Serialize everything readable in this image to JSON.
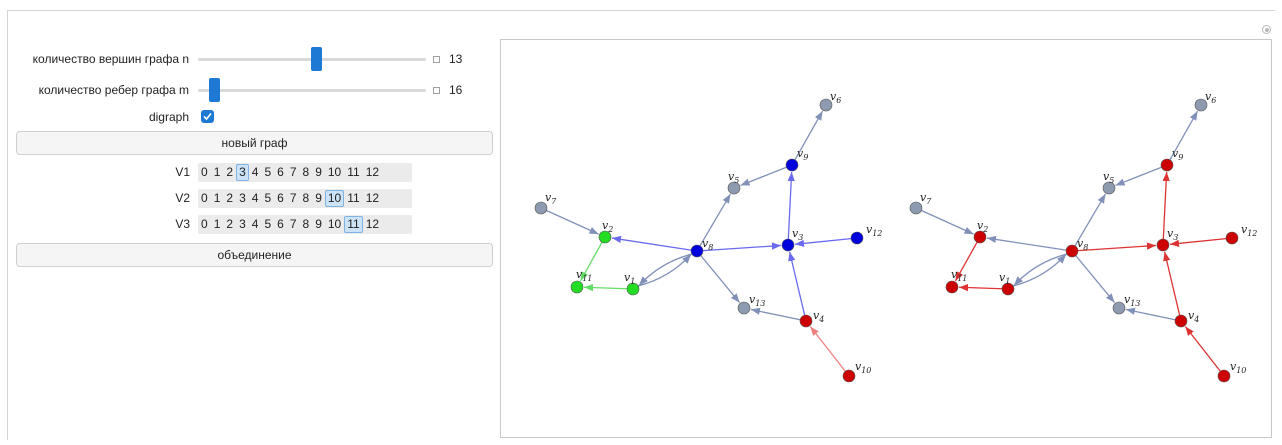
{
  "controls": {
    "n": {
      "label": "количество вершин графа n",
      "value": "13",
      "fraction": 0.52
    },
    "m": {
      "label": "количество ребер графа m",
      "value": "16",
      "fraction": 0.05
    },
    "digraph": {
      "label": "digraph",
      "checked": true
    }
  },
  "new_graph_button": "новый граф",
  "union_button": "объединение",
  "setters": [
    {
      "label": "V1",
      "options": [
        "0",
        "1",
        "2",
        "3",
        "4",
        "5",
        "6",
        "7",
        "8",
        "9",
        "10",
        "11",
        "12"
      ],
      "selected": "3"
    },
    {
      "label": "V2",
      "options": [
        "0",
        "1",
        "2",
        "3",
        "4",
        "5",
        "6",
        "7",
        "8",
        "9",
        "10",
        "11",
        "12"
      ],
      "selected": "10"
    },
    {
      "label": "V3",
      "options": [
        "0",
        "1",
        "2",
        "3",
        "4",
        "5",
        "6",
        "7",
        "8",
        "9",
        "10",
        "11",
        "12"
      ],
      "selected": "11"
    }
  ],
  "colors": {
    "gray": "#8e9ab0",
    "blue": "#0000dd",
    "green": "#22dd22",
    "red": "#cc0000",
    "edge": "#8090b8"
  },
  "vertex_label_prefix": "v",
  "graph_left": {
    "vertices": [
      {
        "id": 1,
        "color": "green"
      },
      {
        "id": 2,
        "color": "green"
      },
      {
        "id": 3,
        "color": "blue"
      },
      {
        "id": 4,
        "color": "red"
      },
      {
        "id": 5,
        "color": "gray"
      },
      {
        "id": 6,
        "color": "gray"
      },
      {
        "id": 7,
        "color": "gray"
      },
      {
        "id": 8,
        "color": "blue"
      },
      {
        "id": 9,
        "color": "blue"
      },
      {
        "id": 10,
        "color": "red"
      },
      {
        "id": 11,
        "color": "green"
      },
      {
        "id": 12,
        "color": "blue"
      },
      {
        "id": 13,
        "color": "gray"
      }
    ],
    "edges": [
      {
        "from": 7,
        "to": 2,
        "color": "gray"
      },
      {
        "from": 8,
        "to": 2,
        "color": "blue"
      },
      {
        "from": 2,
        "to": 11,
        "color": "green"
      },
      {
        "from": 1,
        "to": 11,
        "color": "green"
      },
      {
        "from": 1,
        "to": 8,
        "color": "gray"
      },
      {
        "from": 8,
        "to": 1,
        "color": "gray"
      },
      {
        "from": 8,
        "to": 5,
        "color": "gray"
      },
      {
        "from": 9,
        "to": 5,
        "color": "gray"
      },
      {
        "from": 9,
        "to": 6,
        "color": "gray"
      },
      {
        "from": 3,
        "to": 9,
        "color": "blue"
      },
      {
        "from": 8,
        "to": 3,
        "color": "blue"
      },
      {
        "from": 12,
        "to": 3,
        "color": "blue"
      },
      {
        "from": 4,
        "to": 3,
        "color": "blue"
      },
      {
        "from": 4,
        "to": 13,
        "color": "gray"
      },
      {
        "from": 8,
        "to": 13,
        "color": "gray"
      },
      {
        "from": 10,
        "to": 4,
        "color": "red"
      }
    ]
  },
  "graph_right": {
    "vertices": [
      {
        "id": 1,
        "color": "red"
      },
      {
        "id": 2,
        "color": "red"
      },
      {
        "id": 3,
        "color": "red"
      },
      {
        "id": 4,
        "color": "red"
      },
      {
        "id": 5,
        "color": "gray"
      },
      {
        "id": 6,
        "color": "gray"
      },
      {
        "id": 7,
        "color": "gray"
      },
      {
        "id": 8,
        "color": "red"
      },
      {
        "id": 9,
        "color": "red"
      },
      {
        "id": 10,
        "color": "red"
      },
      {
        "id": 11,
        "color": "red"
      },
      {
        "id": 12,
        "color": "red"
      },
      {
        "id": 13,
        "color": "gray"
      }
    ],
    "edges": [
      {
        "from": 7,
        "to": 2,
        "color": "gray"
      },
      {
        "from": 8,
        "to": 2,
        "color": "gray"
      },
      {
        "from": 2,
        "to": 11,
        "color": "red"
      },
      {
        "from": 1,
        "to": 11,
        "color": "red"
      },
      {
        "from": 1,
        "to": 8,
        "color": "gray"
      },
      {
        "from": 8,
        "to": 1,
        "color": "gray"
      },
      {
        "from": 8,
        "to": 5,
        "color": "gray"
      },
      {
        "from": 9,
        "to": 5,
        "color": "gray"
      },
      {
        "from": 9,
        "to": 6,
        "color": "gray"
      },
      {
        "from": 3,
        "to": 9,
        "color": "red"
      },
      {
        "from": 8,
        "to": 3,
        "color": "red"
      },
      {
        "from": 12,
        "to": 3,
        "color": "red"
      },
      {
        "from": 4,
        "to": 3,
        "color": "red"
      },
      {
        "from": 4,
        "to": 13,
        "color": "gray"
      },
      {
        "from": 8,
        "to": 13,
        "color": "gray"
      },
      {
        "from": 10,
        "to": 4,
        "color": "red"
      }
    ]
  }
}
